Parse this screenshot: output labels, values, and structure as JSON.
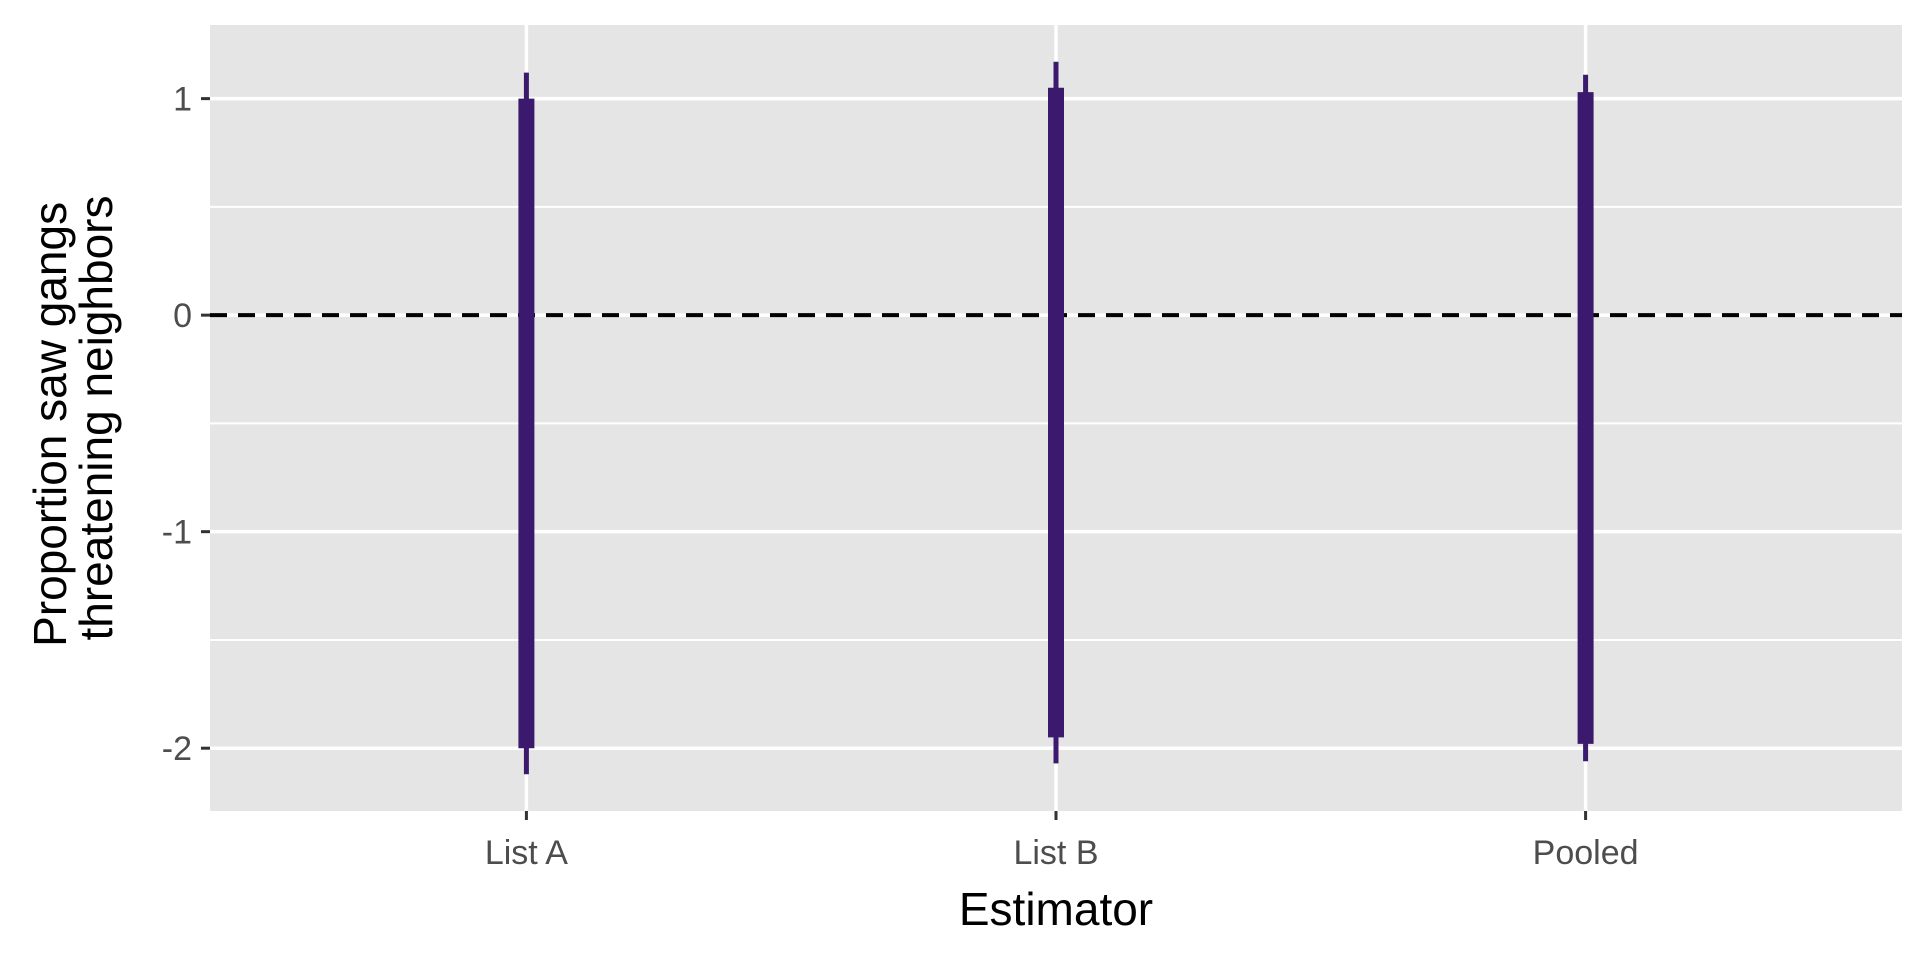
{
  "chart_data": {
    "type": "errorbar",
    "xlabel": "Estimator",
    "ylabel_lines": [
      "Proportion saw gangs",
      "threatening neighbors"
    ],
    "categories": [
      "List A",
      "List B",
      "Pooled"
    ],
    "intervals": [
      {
        "category": "List A",
        "ci_inner": [
          -2.0,
          1.0
        ],
        "ci_outer": [
          -2.12,
          1.12
        ]
      },
      {
        "category": "List B",
        "ci_inner": [
          -1.95,
          1.05
        ],
        "ci_outer": [
          -2.07,
          1.17
        ]
      },
      {
        "category": "Pooled",
        "ci_inner": [
          -1.98,
          1.03
        ],
        "ci_outer": [
          -2.06,
          1.11
        ]
      }
    ],
    "ylim": [
      -2.29,
      1.34
    ],
    "yticks": [
      1,
      0,
      -1,
      -2
    ],
    "ytick_labels": [
      "1",
      "0",
      "-1",
      "-2"
    ],
    "y_minor": [
      0.5,
      -0.5,
      -1.5
    ],
    "reference_line": {
      "y": 0,
      "style": "dashed"
    },
    "grid": true,
    "colors": {
      "panel": "#e5e5e5",
      "grid": "#ffffff",
      "interval": "#3b1a6e",
      "reference": "#000000"
    }
  }
}
